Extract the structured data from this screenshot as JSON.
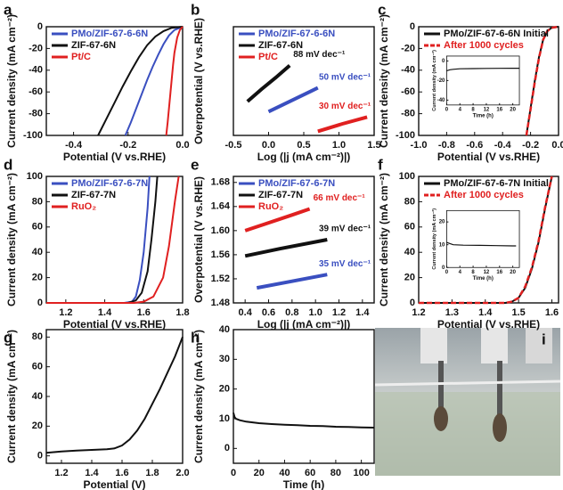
{
  "chart_data": [
    {
      "panel": "a",
      "type": "line",
      "xlabel": "Potential (V vs.RHE)",
      "ylabel": "Current density (mA cm⁻²)",
      "xlim": [
        -0.5,
        0
      ],
      "xticks": [
        -0.4,
        -0.2,
        {
          "value": 0,
          "label": "0.0"
        }
      ],
      "ylim": [
        -100,
        0
      ],
      "yticks": [
        -100,
        -80,
        -60,
        -40,
        -20,
        0
      ],
      "legend": "upper left",
      "series": [
        {
          "name": "PMo/ZIF-67-6-6N",
          "color": "#3a4fc0",
          "x": [
            -0.21,
            -0.19,
            -0.17,
            -0.15,
            -0.13,
            -0.11,
            -0.09,
            -0.07,
            -0.05,
            -0.03,
            -0.01,
            0
          ],
          "values": [
            -100,
            -88,
            -75,
            -62,
            -49,
            -37,
            -26,
            -16,
            -8,
            -3,
            -1,
            0
          ]
        },
        {
          "name": "ZIF-67-6N",
          "color": "#111111",
          "x": [
            -0.31,
            -0.28,
            -0.25,
            -0.22,
            -0.19,
            -0.16,
            -0.13,
            -0.1,
            -0.07,
            -0.04,
            0
          ],
          "values": [
            -100,
            -85,
            -70,
            -55,
            -41,
            -28,
            -17,
            -9,
            -4,
            -1,
            0
          ]
        },
        {
          "name": "Pt/C",
          "color": "#e02020",
          "x": [
            -0.06,
            -0.055,
            -0.05,
            -0.045,
            -0.04,
            -0.035,
            -0.03,
            -0.02,
            -0.01,
            0
          ],
          "values": [
            -100,
            -88,
            -75,
            -62,
            -48,
            -35,
            -24,
            -10,
            -3,
            0
          ]
        }
      ]
    },
    {
      "panel": "b",
      "type": "line",
      "xlabel": "Log (|j (mA cm⁻²)|)",
      "ylabel": "Overpotential (V vs.RHE)",
      "xlim": [
        -0.5,
        1.5
      ],
      "xticks": [
        -0.5,
        {
          "value": 0,
          "label": "0.0"
        },
        0.5,
        {
          "value": 1,
          "label": "1.0"
        },
        1.5
      ],
      "ylim": [
        0,
        0.16
      ],
      "legend": "upper left",
      "series": [
        {
          "name": "PMo/ZIF-67-6-6N",
          "color": "#3a4fc0",
          "x": [
            0,
            0.2,
            0.4,
            0.6,
            0.7
          ],
          "values": [
            0.035,
            0.045,
            0.055,
            0.065,
            0.07
          ]
        },
        {
          "name": "ZIF-67-6N",
          "color": "#111111",
          "x": [
            -0.3,
            -0.1,
            0.1,
            0.3
          ],
          "values": [
            0.05,
            0.068,
            0.085,
            0.103
          ]
        },
        {
          "name": "Pt/C",
          "color": "#e02020",
          "x": [
            0.7,
            1.05,
            1.4
          ],
          "values": [
            0.006,
            0.017,
            0.027
          ]
        }
      ],
      "annotations": [
        "50 mV dec⁻¹",
        "88 mV dec⁻¹",
        "30 mV dec⁻¹"
      ]
    },
    {
      "panel": "c",
      "type": "line",
      "xlabel": "Potential (V vs.RHE)",
      "ylabel": "Current density (mA cm⁻²)",
      "xlim": [
        -1,
        0
      ],
      "xticks": [
        {
          "value": -1,
          "label": "-1.0"
        },
        -0.8,
        -0.6,
        -0.4,
        -0.2,
        {
          "value": 0,
          "label": "0.0"
        }
      ],
      "ylim": [
        -100,
        0
      ],
      "yticks": [
        -100,
        -80,
        -60,
        -40,
        -20,
        0
      ],
      "legend": "upper left",
      "series": [
        {
          "name": "PMo/ZIF-67-6-6N Initial",
          "color": "#111111",
          "x": [
            -0.23,
            -0.2,
            -0.17,
            -0.14,
            -0.11,
            -0.08,
            -0.05,
            0
          ],
          "values": [
            -100,
            -75,
            -50,
            -28,
            -12,
            -4,
            -1,
            0
          ]
        },
        {
          "name": "After 1000 cycles",
          "color": "#e02020",
          "style": "dashed",
          "x": [
            -0.23,
            -0.2,
            -0.17,
            -0.14,
            -0.11,
            -0.08,
            -0.05,
            0
          ],
          "values": [
            -100,
            -76,
            -51,
            -29,
            -12,
            -4,
            -1,
            0
          ]
        }
      ],
      "inset": {
        "xlabel": "Time (h)",
        "ylabel": "Current density (mA cm⁻²)",
        "xlim": [
          0,
          22
        ],
        "xticks": [
          0,
          4,
          8,
          12,
          16,
          20
        ],
        "ylim": [
          -45,
          5
        ],
        "yticks": [
          0,
          -20,
          -40
        ],
        "series": [
          {
            "color": "#111111",
            "x": [
              0,
              1,
              2,
              4,
              8,
              12,
              16,
              20,
              22
            ],
            "values": [
              -10,
              -9,
              -8.5,
              -8,
              -7.8,
              -7.6,
              -7.5,
              -7.4,
              -7.4
            ]
          }
        ]
      }
    },
    {
      "panel": "d",
      "type": "line",
      "xlabel": "Potential (V vs.RHE)",
      "ylabel": "Current density (mA cm⁻²)",
      "xlim": [
        1.1,
        1.8
      ],
      "xticks": [
        1.2,
        1.4,
        1.6,
        1.8
      ],
      "ylim": [
        0,
        100
      ],
      "yticks": [
        0,
        20,
        40,
        60,
        80,
        100
      ],
      "legend": "upper left",
      "series": [
        {
          "name": "PMo/ZIF-67-6-7N",
          "color": "#3a4fc0",
          "x": [
            1.1,
            1.5,
            1.54,
            1.56,
            1.58,
            1.6,
            1.62,
            1.63
          ],
          "values": [
            0,
            0,
            1,
            5,
            18,
            40,
            75,
            100
          ]
        },
        {
          "name": "ZIF-67-7N",
          "color": "#111111",
          "x": [
            1.1,
            1.52,
            1.56,
            1.59,
            1.62,
            1.64,
            1.66,
            1.67
          ],
          "values": [
            0,
            0,
            2,
            8,
            25,
            50,
            80,
            100
          ]
        },
        {
          "name": "RuO₂",
          "color": "#e02020",
          "x": [
            1.1,
            1.55,
            1.6,
            1.65,
            1.7,
            1.73,
            1.76,
            1.78
          ],
          "values": [
            0,
            0,
            1,
            5,
            20,
            45,
            80,
            100
          ]
        }
      ]
    },
    {
      "panel": "e",
      "type": "line",
      "xlabel": "Log (|j (mA cm⁻²)|)",
      "ylabel": "Overpotential (V vs.RHE)",
      "xlim": [
        0.3,
        1.5
      ],
      "xticks": [
        0.4,
        0.6,
        0.8,
        {
          "value": 1,
          "label": "1.0"
        },
        1.2,
        1.4
      ],
      "ylim": [
        1.48,
        1.69
      ],
      "yticks": [
        1.48,
        1.52,
        1.56,
        {
          "value": 1.6,
          "label": "1.60"
        },
        1.64,
        1.68
      ],
      "legend": "upper left",
      "series": [
        {
          "name": "PMo/ZIF-67-6-7N",
          "color": "#3a4fc0",
          "x": [
            0.5,
            0.8,
            1.1
          ],
          "values": [
            1.505,
            1.516,
            1.527
          ]
        },
        {
          "name": "ZIF-67-7N",
          "color": "#111111",
          "x": [
            0.4,
            0.7,
            1.1
          ],
          "values": [
            1.558,
            1.57,
            1.585
          ]
        },
        {
          "name": "RuO₂",
          "color": "#e02020",
          "x": [
            0.4,
            0.6,
            0.8,
            0.95
          ],
          "values": [
            1.6,
            1.613,
            1.626,
            1.636
          ]
        }
      ],
      "annotations": [
        "35 mV dec⁻¹",
        "39 mV dec⁻¹",
        "66 mV dec⁻¹"
      ]
    },
    {
      "panel": "f",
      "type": "line",
      "xlabel": "Potential (V vs.RHE)",
      "ylabel": "Current density (mA cm⁻²)",
      "xlim": [
        1.2,
        1.62
      ],
      "xticks": [
        1.2,
        1.3,
        1.4,
        1.5,
        1.6
      ],
      "ylim": [
        0,
        100
      ],
      "yticks": [
        0,
        20,
        40,
        60,
        80,
        100
      ],
      "legend": "upper left",
      "series": [
        {
          "name": "PMo/ZIF-67-6-7N Initial",
          "color": "#111111",
          "x": [
            1.2,
            1.46,
            1.48,
            1.5,
            1.52,
            1.54,
            1.56,
            1.58,
            1.6
          ],
          "values": [
            0,
            0,
            1,
            4,
            12,
            27,
            48,
            75,
            100
          ]
        },
        {
          "name": "After 1000 cycles",
          "color": "#e02020",
          "style": "dashed",
          "x": [
            1.2,
            1.46,
            1.48,
            1.5,
            1.52,
            1.54,
            1.56,
            1.58,
            1.6
          ],
          "values": [
            0,
            0,
            1,
            4,
            13,
            28,
            49,
            76,
            100
          ]
        }
      ],
      "inset": {
        "xlabel": "Time (h)",
        "ylabel": "Current density (mA cm⁻²)",
        "xlim": [
          0,
          22
        ],
        "xticks": [
          0,
          4,
          8,
          12,
          16,
          20
        ],
        "ylim": [
          0,
          25
        ],
        "yticks": [
          0,
          10,
          20
        ],
        "series": [
          {
            "color": "#111111",
            "x": [
              0,
              1,
              2,
              5,
              10,
              15,
              20,
              21
            ],
            "values": [
              11,
              10.5,
              10,
              9.8,
              9.7,
              9.6,
              9.5,
              9.5
            ]
          }
        ]
      }
    },
    {
      "panel": "g",
      "type": "line",
      "xlabel": "Potential (V)",
      "ylabel": "Current density (mA cm⁻²)",
      "xlim": [
        1.1,
        2
      ],
      "xticks": [
        1.2,
        1.4,
        1.6,
        1.8,
        {
          "value": 2,
          "label": "2.0"
        }
      ],
      "ylim": [
        -5,
        85
      ],
      "yticks": [
        0,
        20,
        40,
        60,
        80
      ],
      "series": [
        {
          "color": "#111111",
          "x": [
            1.1,
            1.2,
            1.3,
            1.4,
            1.5,
            1.55,
            1.6,
            1.65,
            1.7,
            1.75,
            1.8,
            1.85,
            1.9,
            1.95,
            2
          ],
          "values": [
            2,
            3,
            3.5,
            4,
            4.5,
            5,
            7,
            11,
            17,
            25,
            35,
            45,
            56,
            67,
            80
          ]
        }
      ]
    },
    {
      "panel": "h",
      "type": "line",
      "xlabel": "Time (h)",
      "ylabel": "Current density (mA cm⁻²)",
      "xlim": [
        0,
        110
      ],
      "xticks": [
        0,
        20,
        40,
        60,
        80,
        100
      ],
      "ylim": [
        -5,
        40
      ],
      "yticks": [
        0,
        10,
        20,
        30,
        40
      ],
      "series": [
        {
          "color": "#111111",
          "x": [
            0,
            1,
            2,
            5,
            10,
            20,
            30,
            40,
            50,
            60,
            70,
            80,
            90,
            100,
            110
          ],
          "values": [
            12,
            10.5,
            10,
            9.5,
            9,
            8.5,
            8.2,
            8,
            7.8,
            7.6,
            7.5,
            7.3,
            7.2,
            7.1,
            7
          ]
        }
      ]
    }
  ],
  "photo": {
    "panel": "i"
  }
}
